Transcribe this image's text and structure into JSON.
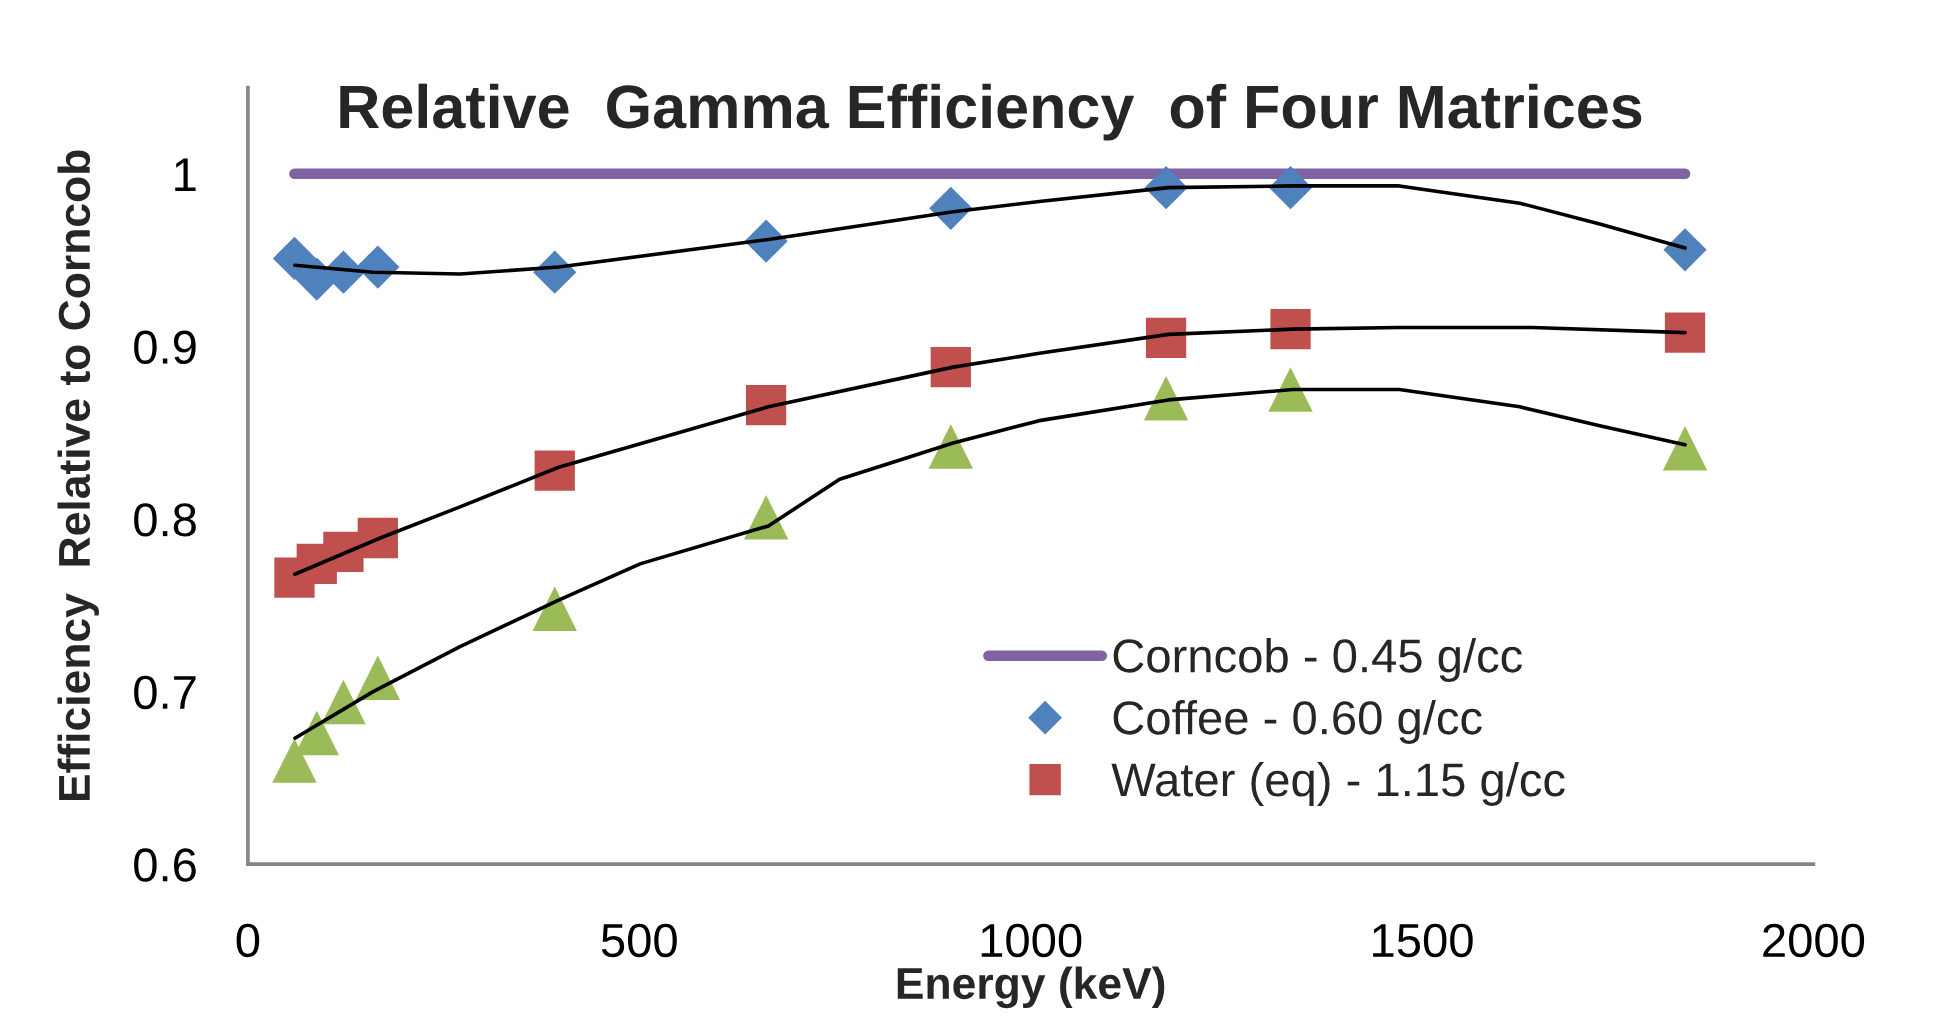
{
  "chart_data": {
    "type": "scatter",
    "title": "Relative  Gamma Efficiency  of Four Matrices",
    "xlabel": "Energy (keV)",
    "ylabel": "Efficiency  Relative to Corncob",
    "xlim": [
      0,
      2000
    ],
    "xticks": [
      0,
      500,
      1000,
      1500,
      2000
    ],
    "ylim": [
      0.6,
      1.05
    ],
    "yticks": [
      0.6,
      0.7,
      0.8,
      0.9,
      1
    ],
    "legend": "bottom right",
    "x": [
      59.5,
      88,
      122,
      166,
      392,
      662,
      898,
      1173,
      1332,
      1836
    ],
    "series": [
      {
        "name": "Corncob - 0.45 g/cc",
        "type": "line",
        "marker": "none",
        "line_style": "solid",
        "color": "#8064a2",
        "values": [
          1,
          1,
          1,
          1,
          1,
          1,
          1,
          1,
          1,
          1
        ]
      },
      {
        "name": "Coffee - 0.60 g/cc",
        "marker": "diamond",
        "color": "#4f81bd",
        "values": [
          0.951,
          0.939,
          0.943,
          0.946,
          0.943,
          0.961,
          0.98,
          0.992,
          0.992,
          0.956
        ]
      },
      {
        "name": "Water (eq) - 1.15 g/cc",
        "marker": "square",
        "color": "#c0504d",
        "values": [
          0.766,
          0.774,
          0.781,
          0.789,
          0.828,
          0.866,
          0.888,
          0.905,
          0.91,
          0.908
        ]
      },
      {
        "marker": "triangle",
        "color": "#9bbb59",
        "values": [
          0.66,
          0.676,
          0.694,
          0.708,
          0.748,
          0.801,
          0.842,
          0.87,
          0.875,
          0.841
        ]
      },
      {
        "type": "line",
        "marker": "none",
        "line_style": "solid",
        "color": "#000000",
        "x": [
          60,
          160,
          271,
          397,
          665,
          901,
          1011,
          1176,
          1335,
          1471,
          1625,
          1727,
          1836
        ],
        "values": [
          0.947,
          0.943,
          0.942,
          0.946,
          0.962,
          0.978,
          0.984,
          0.992,
          0.993,
          0.993,
          0.983,
          0.971,
          0.957
        ]
      },
      {
        "type": "line",
        "marker": "none",
        "line_style": "solid",
        "color": "#000000",
        "x": [
          60,
          169,
          271,
          397,
          665,
          901,
          1011,
          1176,
          1335,
          1471,
          1641,
          1836
        ],
        "values": [
          0.768,
          0.789,
          0.807,
          0.83,
          0.865,
          0.888,
          0.896,
          0.907,
          0.91,
          0.911,
          0.911,
          0.908
        ]
      },
      {
        "type": "line",
        "marker": "none",
        "line_style": "solid",
        "color": "#000000",
        "x": [
          60,
          160,
          271,
          397,
          501,
          665,
          756,
          901,
          1011,
          1176,
          1335,
          1471,
          1625,
          1727,
          1836
        ],
        "values": [
          0.673,
          0.7,
          0.726,
          0.753,
          0.774,
          0.796,
          0.823,
          0.844,
          0.857,
          0.869,
          0.875,
          0.875,
          0.865,
          0.854,
          0.843
        ]
      }
    ]
  }
}
